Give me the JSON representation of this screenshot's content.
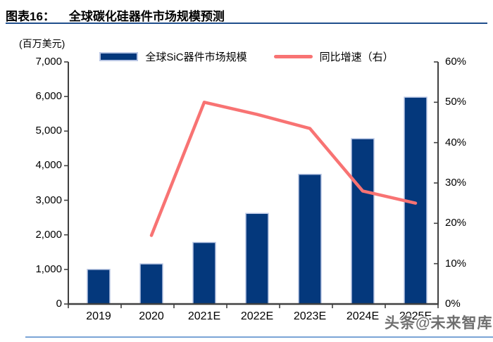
{
  "header": {
    "tag": "图表16：",
    "title": "全球碳化硅器件市场规模预测"
  },
  "unit_label": "(百万美元)",
  "watermark": "头条@未来智库",
  "chart_data": {
    "type": "bar",
    "title": "全球碳化硅器件市场规模预测",
    "xlabel": "",
    "ylabel_left": "(百万美元)",
    "legend_position": "top",
    "grid": false,
    "categories": [
      "2019",
      "2020",
      "2021E",
      "2022E",
      "2023E",
      "2024E",
      "2025E"
    ],
    "series": [
      {
        "name": "全球SiC器件市场规模",
        "type": "bar",
        "axis": "left",
        "values": [
          1000,
          1160,
          1780,
          2620,
          3750,
          4780,
          5980
        ]
      },
      {
        "name": "同比增速（右）",
        "type": "line",
        "axis": "right",
        "unit": "%",
        "values": [
          null,
          17,
          50,
          47,
          43.5,
          28,
          25
        ]
      }
    ],
    "left_axis": {
      "min": 0,
      "max": 7000,
      "tick_labels": [
        "0",
        "1,000",
        "2,000",
        "3,000",
        "4,000",
        "5,000",
        "6,000",
        "7,000"
      ]
    },
    "right_axis": {
      "min_percent": 0,
      "max_percent": 60,
      "tick_labels": [
        "0%",
        "10%",
        "20%",
        "30%",
        "40%",
        "50%",
        "60%"
      ]
    },
    "colors": {
      "bar_fill": "#04387c",
      "bar_border": "#b9c6e4",
      "line": "#f87373",
      "axis": "#404040",
      "title_rule": "#1f4e8c",
      "bottom_rule": "#7ba4d6"
    }
  }
}
